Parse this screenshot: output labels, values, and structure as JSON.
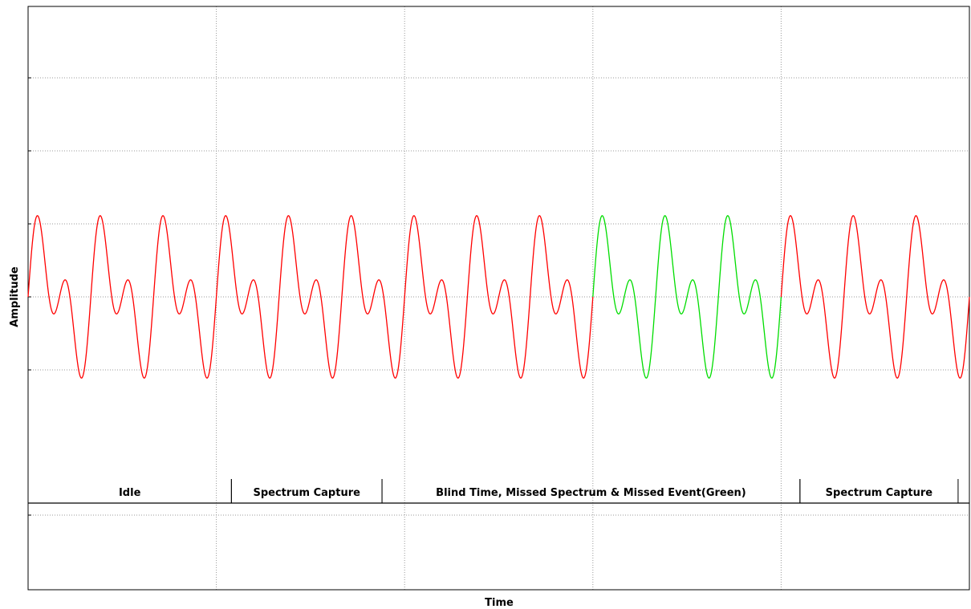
{
  "chart_data": {
    "type": "line",
    "xlabel": "Time",
    "ylabel": "Amplitude",
    "grid": true,
    "xlim": [
      0,
      5
    ],
    "ylim": [
      -2.8,
      4
    ],
    "legend": "none",
    "colors": {
      "captured": "#ff0000",
      "missed": "#00dd00",
      "grid": "#999999",
      "frame": "#000000"
    },
    "waveform": {
      "components": [
        {
          "amplitude": 1,
          "cycles_per_unit": 3
        },
        {
          "amplitude": 1,
          "cycles_per_unit": 6
        }
      ],
      "highlight_range": [
        3,
        4
      ]
    },
    "segments": [
      {
        "label": "Idle",
        "start": 0,
        "end": 1.08
      },
      {
        "label": "Spectrum Capture",
        "start": 1.08,
        "end": 1.88
      },
      {
        "label": "Blind Time, Missed Spectrum & Missed Event(Green)",
        "start": 1.88,
        "end": 4.1
      },
      {
        "label": "Spectrum Capture",
        "start": 4.1,
        "end": 4.94
      }
    ]
  }
}
